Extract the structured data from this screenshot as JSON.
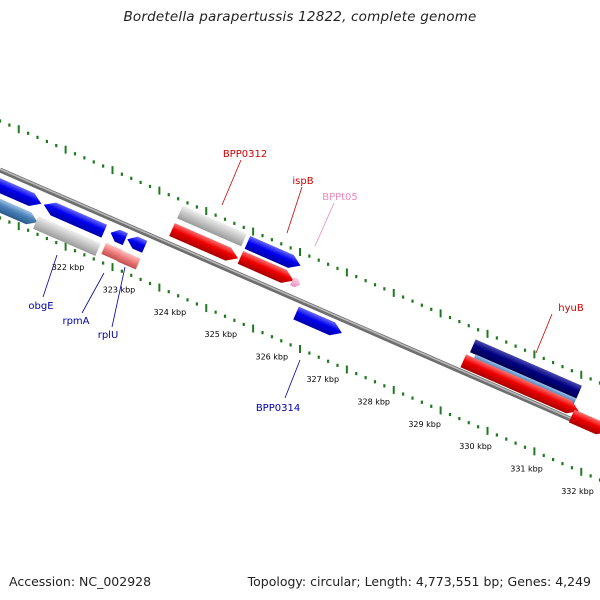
{
  "title": "Bordetella parapertussis 12822, complete genome",
  "footer": {
    "accession": "Accession: NC_002928",
    "summary": "Topology: circular; Length: 4,773,551 bp; Genes: 4,249"
  },
  "colors": {
    "backbone": "#8a8a8a",
    "tick": "#1f7a1f",
    "forward_cds": "#0000ee",
    "forward_cds_alt": "#4a80b8",
    "forward_cds_dark": "#000080",
    "reverse_cds": "#ee0000",
    "reverse_rna": "#f08080",
    "gray_feature": "#c8c8c8",
    "trna": "#f2a0c8",
    "label_red": "#cc0000",
    "label_blue": "#0000aa",
    "label_pink": "#ee88bb"
  },
  "scale_labels": [
    "322 kbp",
    "323 kbp",
    "324 kbp",
    "325 kbp",
    "326 kbp",
    "327 kbp",
    "328 kbp",
    "329 kbp",
    "330 kbp",
    "331 kbp",
    "332 kbp"
  ],
  "gene_labels": {
    "obgE": "obgE",
    "rpmA": "rpmA",
    "rplU": "rplU",
    "BPP0312": "BPP0312",
    "ispB": "ispB",
    "BPPt05": "BPPt05",
    "BPP0314": "BPP0314",
    "hyuB": "hyuB"
  }
}
